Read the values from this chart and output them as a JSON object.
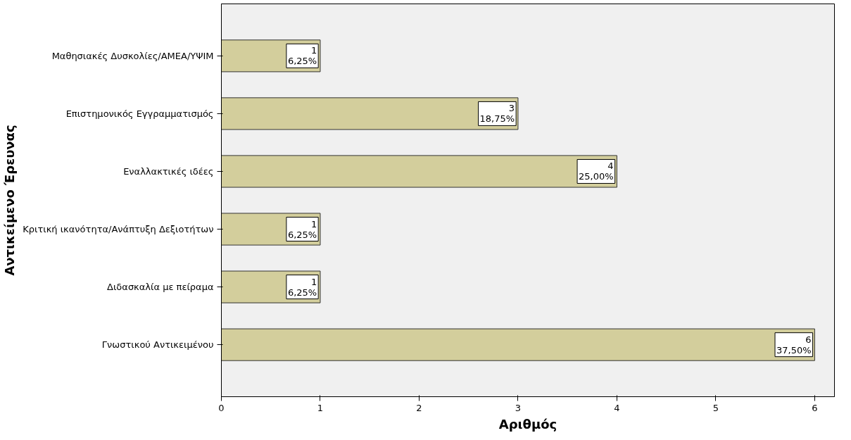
{
  "chart_data": {
    "type": "bar",
    "orientation": "horizontal",
    "xlabel": "Αριθμός",
    "ylabel": "Αντικείμενο Έρευνας",
    "categories": [
      "Μαθησιακές Δυσκολίες/ΑΜΕΑ/ΥΨΙΜ",
      "Επιστημονικός Εγγραμματισμός",
      "Εναλλακτικές ιδέες",
      "Κριτική ικανότητα/Ανάπτυξη Δεξιοτήτων",
      "Διδασκαλία με πείραμα",
      "Γνωστικού Αντικειμένου"
    ],
    "values": [
      1,
      3,
      4,
      1,
      1,
      6
    ],
    "value_labels": [
      "1\n6,25%",
      "3\n18,75%",
      "4\n25,00%",
      "1\n6,25%",
      "1\n6,25%",
      "6\n37,50%"
    ],
    "color": "#d3ce9c",
    "xlim": [
      0,
      6.2
    ],
    "xticks": [
      0,
      1,
      2,
      3,
      4,
      5,
      6
    ],
    "grid": false
  }
}
